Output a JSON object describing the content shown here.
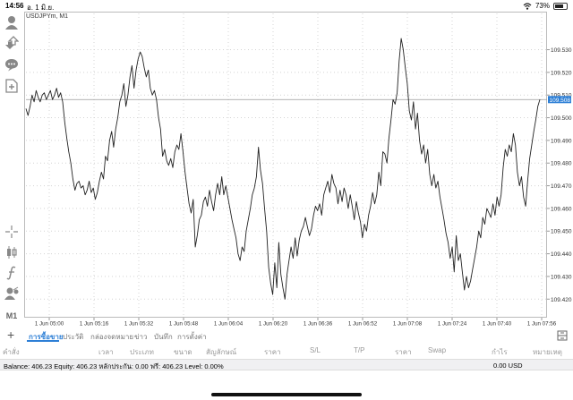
{
  "status_bar": {
    "time": "14:56",
    "date": "อ. 1 มิ.ย.",
    "battery": "73%",
    "battery_level": 0.73
  },
  "chart": {
    "symbol_label": "USDJPYm, M1",
    "current_price_label": "109.508",
    "line_color": "#222222",
    "price_tag_color": "#2d7fd6"
  },
  "chart_data": {
    "type": "line",
    "title": "USDJPYm, M1",
    "ylim": [
      109.413,
      109.546
    ],
    "y_ticks": [
      "109.530",
      "109.520",
      "109.510",
      "109.500",
      "109.490",
      "109.480",
      "109.470",
      "109.460",
      "109.450",
      "109.440",
      "109.430",
      "109.420"
    ],
    "x_ticks": [
      "1 Jun 05:00",
      "1 Jun 05:16",
      "1 Jun 05:32",
      "1 Jun 05:48",
      "1 Jun 06:04",
      "1 Jun 06:20",
      "1 Jun 06:36",
      "1 Jun 06:52",
      "1 Jun 07:08",
      "1 Jun 07:24",
      "1 Jun 07:40",
      "1 Jun 07:56"
    ],
    "grid": true,
    "current_price": 109.508,
    "series": [
      {
        "values": [
          109.504,
          109.501,
          109.505,
          109.51,
          109.507,
          109.512,
          109.509,
          109.507,
          109.51,
          109.511,
          109.508,
          109.51,
          109.512,
          109.508,
          109.51,
          109.513,
          109.509,
          109.511,
          109.507,
          109.498,
          109.491,
          109.485,
          109.48,
          109.473,
          109.468,
          109.471,
          109.472,
          109.469,
          109.47,
          109.466,
          109.468,
          109.472,
          109.467,
          109.469,
          109.464,
          109.467,
          109.472,
          109.476,
          109.473,
          109.483,
          109.481,
          109.49,
          109.494,
          109.487,
          109.495,
          109.5,
          109.507,
          109.51,
          109.515,
          109.505,
          109.51,
          109.518,
          109.523,
          109.513,
          109.521,
          109.526,
          109.529,
          109.527,
          109.522,
          109.518,
          109.521,
          109.513,
          109.51,
          109.512,
          109.508,
          109.5,
          109.495,
          109.483,
          109.486,
          109.481,
          109.479,
          109.482,
          109.478,
          109.485,
          109.488,
          109.486,
          109.493,
          109.485,
          109.476,
          109.469,
          109.462,
          109.458,
          109.464,
          109.443,
          109.448,
          109.455,
          109.457,
          109.463,
          109.465,
          109.461,
          109.468,
          109.463,
          109.459,
          109.466,
          109.471,
          109.466,
          109.474,
          109.466,
          109.47,
          109.465,
          109.46,
          109.455,
          109.451,
          109.447,
          109.44,
          109.437,
          109.443,
          109.441,
          109.45,
          109.455,
          109.46,
          109.466,
          109.469,
          109.474,
          109.487,
          109.477,
          109.471,
          109.46,
          109.45,
          109.434,
          109.427,
          109.422,
          109.436,
          109.425,
          109.445,
          109.431,
          109.425,
          109.42,
          109.431,
          109.437,
          109.443,
          109.438,
          109.447,
          109.439,
          109.446,
          109.45,
          109.452,
          109.456,
          109.452,
          109.448,
          109.451,
          109.457,
          109.461,
          109.459,
          109.462,
          109.457,
          109.466,
          109.469,
          109.472,
          109.467,
          109.475,
          109.471,
          109.469,
          109.462,
          109.468,
          109.463,
          109.469,
          109.466,
          109.46,
          109.466,
          109.461,
          109.455,
          109.463,
          109.458,
          109.454,
          109.447,
          109.453,
          109.45,
          109.457,
          109.461,
          109.467,
          109.462,
          109.466,
          109.476,
          109.47,
          109.485,
          109.484,
          109.48,
          109.491,
          109.499,
          109.508,
          109.506,
          109.511,
          109.525,
          109.535,
          109.53,
          109.522,
          109.515,
          109.503,
          109.499,
          109.507,
          109.495,
          109.502,
          109.49,
          109.484,
          109.488,
          109.48,
          109.486,
          109.475,
          109.47,
          109.475,
          109.469,
          109.472,
          109.465,
          109.46,
          109.455,
          109.449,
          109.445,
          109.438,
          109.443,
          109.432,
          109.448,
          109.437,
          109.44,
          109.432,
          109.424,
          109.43,
          109.425,
          109.428,
          109.433,
          109.438,
          109.443,
          109.45,
          109.447,
          109.456,
          109.453,
          109.46,
          109.458,
          109.456,
          109.462,
          109.457,
          109.465,
          109.461,
          109.466,
          109.478,
          109.486,
          109.483,
          109.488,
          109.485,
          109.493,
          109.488,
          109.476,
          109.47,
          109.474,
          109.465,
          109.461,
          109.472,
          109.482,
          109.488,
          109.494,
          109.499,
          109.505,
          109.508
        ]
      }
    ]
  },
  "left_toolbar": {
    "icons": [
      "account-icon",
      "trade-icon",
      "chat-icon",
      "new-order-icon",
      "crosshair-icon",
      "chart-type-icon",
      "indicator-icon",
      "objects-icon"
    ],
    "timeframe": "M1"
  },
  "terminal": {
    "tabs": [
      "การซื้อขาย",
      "ประวัติ",
      "กล่องจดหมาย",
      "ข่าว",
      "บันทึก",
      "การตั้งค่า"
    ],
    "active_tab_index": 0,
    "columns": [
      "คำสั่ง",
      "เวลา",
      "ประเภท",
      "ขนาด",
      "สัญลักษณ์",
      "ราคา",
      "S/L",
      "T/P",
      "ราคา",
      "Swap",
      "กำไร",
      "หมายเหตุ"
    ],
    "balance_text": "Balance: 406.23 Equity: 406.23 หลักประกัน: 0.00 ฟรี: 406.23 Level: 0.00%",
    "profit_text": "0.00  USD"
  }
}
